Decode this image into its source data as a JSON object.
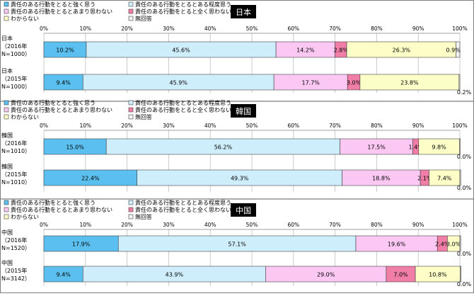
{
  "colors": {
    "strong": "#5bc0ef",
    "somewhat": "#cfeefc",
    "not_much": "#fbc8f4",
    "not_at_all": "#f07ea6",
    "dont_know": "#fdfdc8",
    "no_answer": "#f2f2f2",
    "country_tag_bg": "#000000",
    "grid": "#bfbfbf",
    "border": "#595959"
  },
  "chart_data": [
    {
      "type": "bar",
      "orientation": "horizontal",
      "stacked": true,
      "country_tag": "日本",
      "legend": {
        "items": [
          "責任のある行動をとると強く思う",
          "責任のある行動をとるとある程度思う",
          "責任のある行動をとるとあまり思わない",
          "責任のある行動をとると全く思わない",
          "わからない",
          "無回答"
        ]
      },
      "x_ticks": [
        "0%",
        "10%",
        "20%",
        "30%",
        "40%",
        "50%",
        "60%",
        "70%",
        "80%",
        "90%",
        "100%"
      ],
      "xlim": [
        0,
        100
      ],
      "grid": true,
      "categories": [
        {
          "lines": [
            "日本",
            "（2016年",
            "N=1000）"
          ]
        },
        {
          "lines": [
            "日本",
            "（2015年",
            "N=1000）"
          ]
        }
      ],
      "series": [
        {
          "name": "責任のある行動をとると強く思う",
          "values": [
            10.2,
            9.4
          ],
          "labels": [
            "10.2%",
            "9.4%"
          ]
        },
        {
          "name": "責任のある行動をとるとある程度思う",
          "values": [
            45.6,
            45.9
          ],
          "labels": [
            "45.6%",
            "45.9%"
          ]
        },
        {
          "name": "責任のある行動をとるとあまり思わない",
          "values": [
            14.2,
            17.7
          ],
          "labels": [
            "14.2%",
            "17.7%"
          ]
        },
        {
          "name": "責任のある行動をとると全く思わない",
          "values": [
            2.8,
            3.0
          ],
          "labels": [
            "2.8%",
            "3.0%"
          ]
        },
        {
          "name": "わからない",
          "values": [
            26.3,
            23.8
          ],
          "labels": [
            "26.3%",
            "23.8%"
          ]
        },
        {
          "name": "無回答",
          "values": [
            0.9,
            0.2
          ],
          "labels": [
            "0.9%",
            "0.2%"
          ]
        }
      ]
    },
    {
      "type": "bar",
      "orientation": "horizontal",
      "stacked": true,
      "country_tag": "韓国",
      "legend": {
        "items": [
          "責任のある行動をとると強く思う",
          "責任のある行動をとるとある程度思う",
          "責任のある行動をとるとあまり思わない",
          "責任のある行動をとると全く思わない",
          "わからない",
          "無回答"
        ]
      },
      "x_ticks": [
        "0%",
        "10%",
        "20%",
        "30%",
        "40%",
        "50%",
        "60%",
        "70%",
        "80%",
        "90%",
        "100%"
      ],
      "xlim": [
        0,
        100
      ],
      "grid": true,
      "categories": [
        {
          "lines": [
            "韓国",
            "（2016年",
            "N=1010）"
          ]
        },
        {
          "lines": [
            "韓国",
            "（2015年",
            "N=1010）"
          ]
        }
      ],
      "series": [
        {
          "name": "責任のある行動をとると強く思う",
          "values": [
            15.0,
            22.4
          ],
          "labels": [
            "15.0%",
            "22.4%"
          ]
        },
        {
          "name": "責任のある行動をとるとある程度思う",
          "values": [
            56.2,
            49.3
          ],
          "labels": [
            "56.2%",
            "49.3%"
          ]
        },
        {
          "name": "責任のある行動をとるとあまり思わない",
          "values": [
            17.5,
            18.8
          ],
          "labels": [
            "17.5%",
            "18.8%"
          ]
        },
        {
          "name": "責任のある行動をとると全く思わない",
          "values": [
            1.4,
            2.1
          ],
          "labels": [
            "1.4%",
            "2.1%"
          ]
        },
        {
          "name": "わからない",
          "values": [
            9.8,
            7.4
          ],
          "labels": [
            "9.8%",
            "7.4%"
          ]
        },
        {
          "name": "無回答",
          "values": [
            0.0,
            0.0
          ],
          "labels": [
            "0.0%",
            "0.0%"
          ]
        }
      ]
    },
    {
      "type": "bar",
      "orientation": "horizontal",
      "stacked": true,
      "country_tag": "中国",
      "legend": {
        "items": [
          "責任のある行動をとると強く思う",
          "責任のある行動をとるとある程度思う",
          "責任のある行動をとるとあまり思わない",
          "責任のある行動をとると全く思わない",
          "わからない",
          "無回答"
        ]
      },
      "x_ticks": [
        "0%",
        "10%",
        "20%",
        "30%",
        "40%",
        "50%",
        "60%",
        "70%",
        "80%",
        "90%",
        "100%"
      ],
      "xlim": [
        0,
        100
      ],
      "grid": true,
      "categories": [
        {
          "lines": [
            "中国",
            "（2016年",
            "N=1520）"
          ]
        },
        {
          "lines": [
            "中国",
            "（2015年",
            "N=3142）"
          ]
        }
      ],
      "series": [
        {
          "name": "責任のある行動をとると強く思う",
          "values": [
            17.9,
            9.4
          ],
          "labels": [
            "17.9%",
            "9.4%"
          ]
        },
        {
          "name": "責任のある行動をとるとある程度思う",
          "values": [
            57.1,
            43.9
          ],
          "labels": [
            "57.1%",
            "43.9%"
          ]
        },
        {
          "name": "責任のある行動をとるとあまり思わない",
          "values": [
            19.6,
            29.0
          ],
          "labels": [
            "19.6%",
            "29.0%"
          ]
        },
        {
          "name": "責任のある行動をとると全く思わない",
          "values": [
            2.4,
            7.0
          ],
          "labels": [
            "2.4%",
            "7.0%"
          ]
        },
        {
          "name": "わからない",
          "values": [
            3.0,
            10.8
          ],
          "labels": [
            "3.0%",
            "10.8%"
          ]
        },
        {
          "name": "無回答",
          "values": [
            0.0,
            0.0
          ],
          "labels": [
            "0.0%",
            "0.0%"
          ]
        }
      ]
    }
  ]
}
